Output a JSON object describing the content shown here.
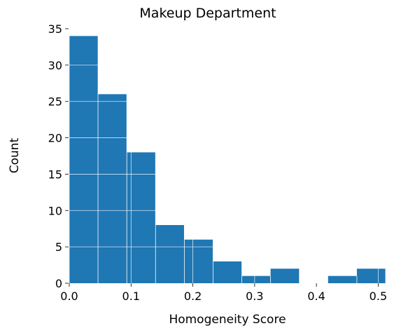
{
  "chart_data": {
    "type": "bar",
    "title": "Makeup Department",
    "xlabel": "Homogeneity Score",
    "ylabel": "Count",
    "xlim": [
      0.0,
      0.512
    ],
    "ylim": [
      0,
      35
    ],
    "bar_color": "#1f77b4",
    "grid": true,
    "grid_color": "#ffffff",
    "xticks": [
      {
        "value": 0.0,
        "label": "0.0"
      },
      {
        "value": 0.1,
        "label": "0.1"
      },
      {
        "value": 0.2,
        "label": "0.2"
      },
      {
        "value": 0.3,
        "label": "0.3"
      },
      {
        "value": 0.4,
        "label": "0.4"
      },
      {
        "value": 0.5,
        "label": "0.5"
      }
    ],
    "yticks": [
      {
        "value": 0,
        "label": "0"
      },
      {
        "value": 5,
        "label": "5"
      },
      {
        "value": 10,
        "label": "10"
      },
      {
        "value": 15,
        "label": "15"
      },
      {
        "value": 20,
        "label": "20"
      },
      {
        "value": 25,
        "label": "25"
      },
      {
        "value": 30,
        "label": "30"
      },
      {
        "value": 35,
        "label": "35"
      }
    ],
    "bins": [
      {
        "x0": 0.0,
        "x1": 0.0465,
        "count": 34
      },
      {
        "x0": 0.0465,
        "x1": 0.0931,
        "count": 26
      },
      {
        "x0": 0.0931,
        "x1": 0.1396,
        "count": 18
      },
      {
        "x0": 0.1396,
        "x1": 0.1862,
        "count": 8
      },
      {
        "x0": 0.1862,
        "x1": 0.2327,
        "count": 6
      },
      {
        "x0": 0.2327,
        "x1": 0.2793,
        "count": 3
      },
      {
        "x0": 0.2793,
        "x1": 0.3258,
        "count": 1
      },
      {
        "x0": 0.3258,
        "x1": 0.3724,
        "count": 2
      },
      {
        "x0": 0.3724,
        "x1": 0.4189,
        "count": 0
      },
      {
        "x0": 0.4189,
        "x1": 0.4655,
        "count": 1
      },
      {
        "x0": 0.4655,
        "x1": 0.512,
        "count": 2
      }
    ]
  }
}
